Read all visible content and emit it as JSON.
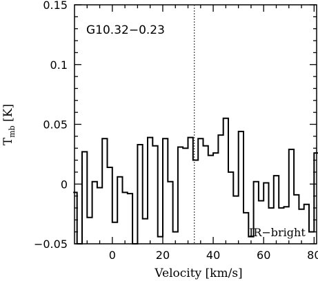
{
  "chart_data": {
    "type": "line",
    "title": "",
    "xlabel": "Velocity [km/s]",
    "ylabel_main": "T",
    "ylabel_sub": "mb",
    "ylabel_unit": " [K]",
    "xlim": [
      -15,
      81
    ],
    "ylim": [
      -0.05,
      0.15
    ],
    "x_ticks": [
      0,
      20,
      40,
      60,
      80
    ],
    "y_ticks": [
      -0.05,
      0,
      0.05,
      0.1,
      0.15
    ],
    "x_tick_labels": [
      "0",
      "20",
      "40",
      "60",
      "80"
    ],
    "y_tick_labels": [
      "−0.05",
      "0",
      "0.05",
      "0.1",
      "0.15"
    ],
    "grid": false,
    "annotations": {
      "source": "G10.32−0.23",
      "category": "IR−bright"
    },
    "reference_line_x": 32.5,
    "series": [
      {
        "style": "step",
        "x": [
          -15.5,
          -14,
          -12,
          -10,
          -8,
          -6,
          -4,
          -2,
          0,
          2,
          4,
          6,
          8,
          10,
          12,
          14,
          16,
          18,
          20,
          22,
          24,
          26,
          28,
          30,
          32,
          34,
          36,
          38,
          40,
          42,
          44,
          46,
          48,
          50,
          52,
          54,
          56,
          58,
          60,
          62,
          64,
          66,
          68,
          70,
          72,
          74,
          76,
          78,
          80
        ],
        "y": [
          -0.007,
          -0.05,
          0.027,
          -0.028,
          0.002,
          -0.003,
          0.038,
          0.014,
          -0.032,
          0.006,
          -0.007,
          -0.008,
          -0.05,
          0.033,
          -0.029,
          0.039,
          0.032,
          -0.044,
          0.038,
          0.002,
          -0.04,
          0.031,
          0.03,
          0.039,
          0.02,
          0.038,
          0.032,
          0.024,
          0.026,
          0.041,
          0.055,
          0.01,
          -0.01,
          0.044,
          -0.024,
          -0.044,
          0.002,
          -0.014,
          0.001,
          -0.02,
          0.007,
          -0.02,
          -0.019,
          0.029,
          -0.009,
          -0.021,
          -0.017,
          -0.04,
          0.026
        ]
      }
    ]
  }
}
